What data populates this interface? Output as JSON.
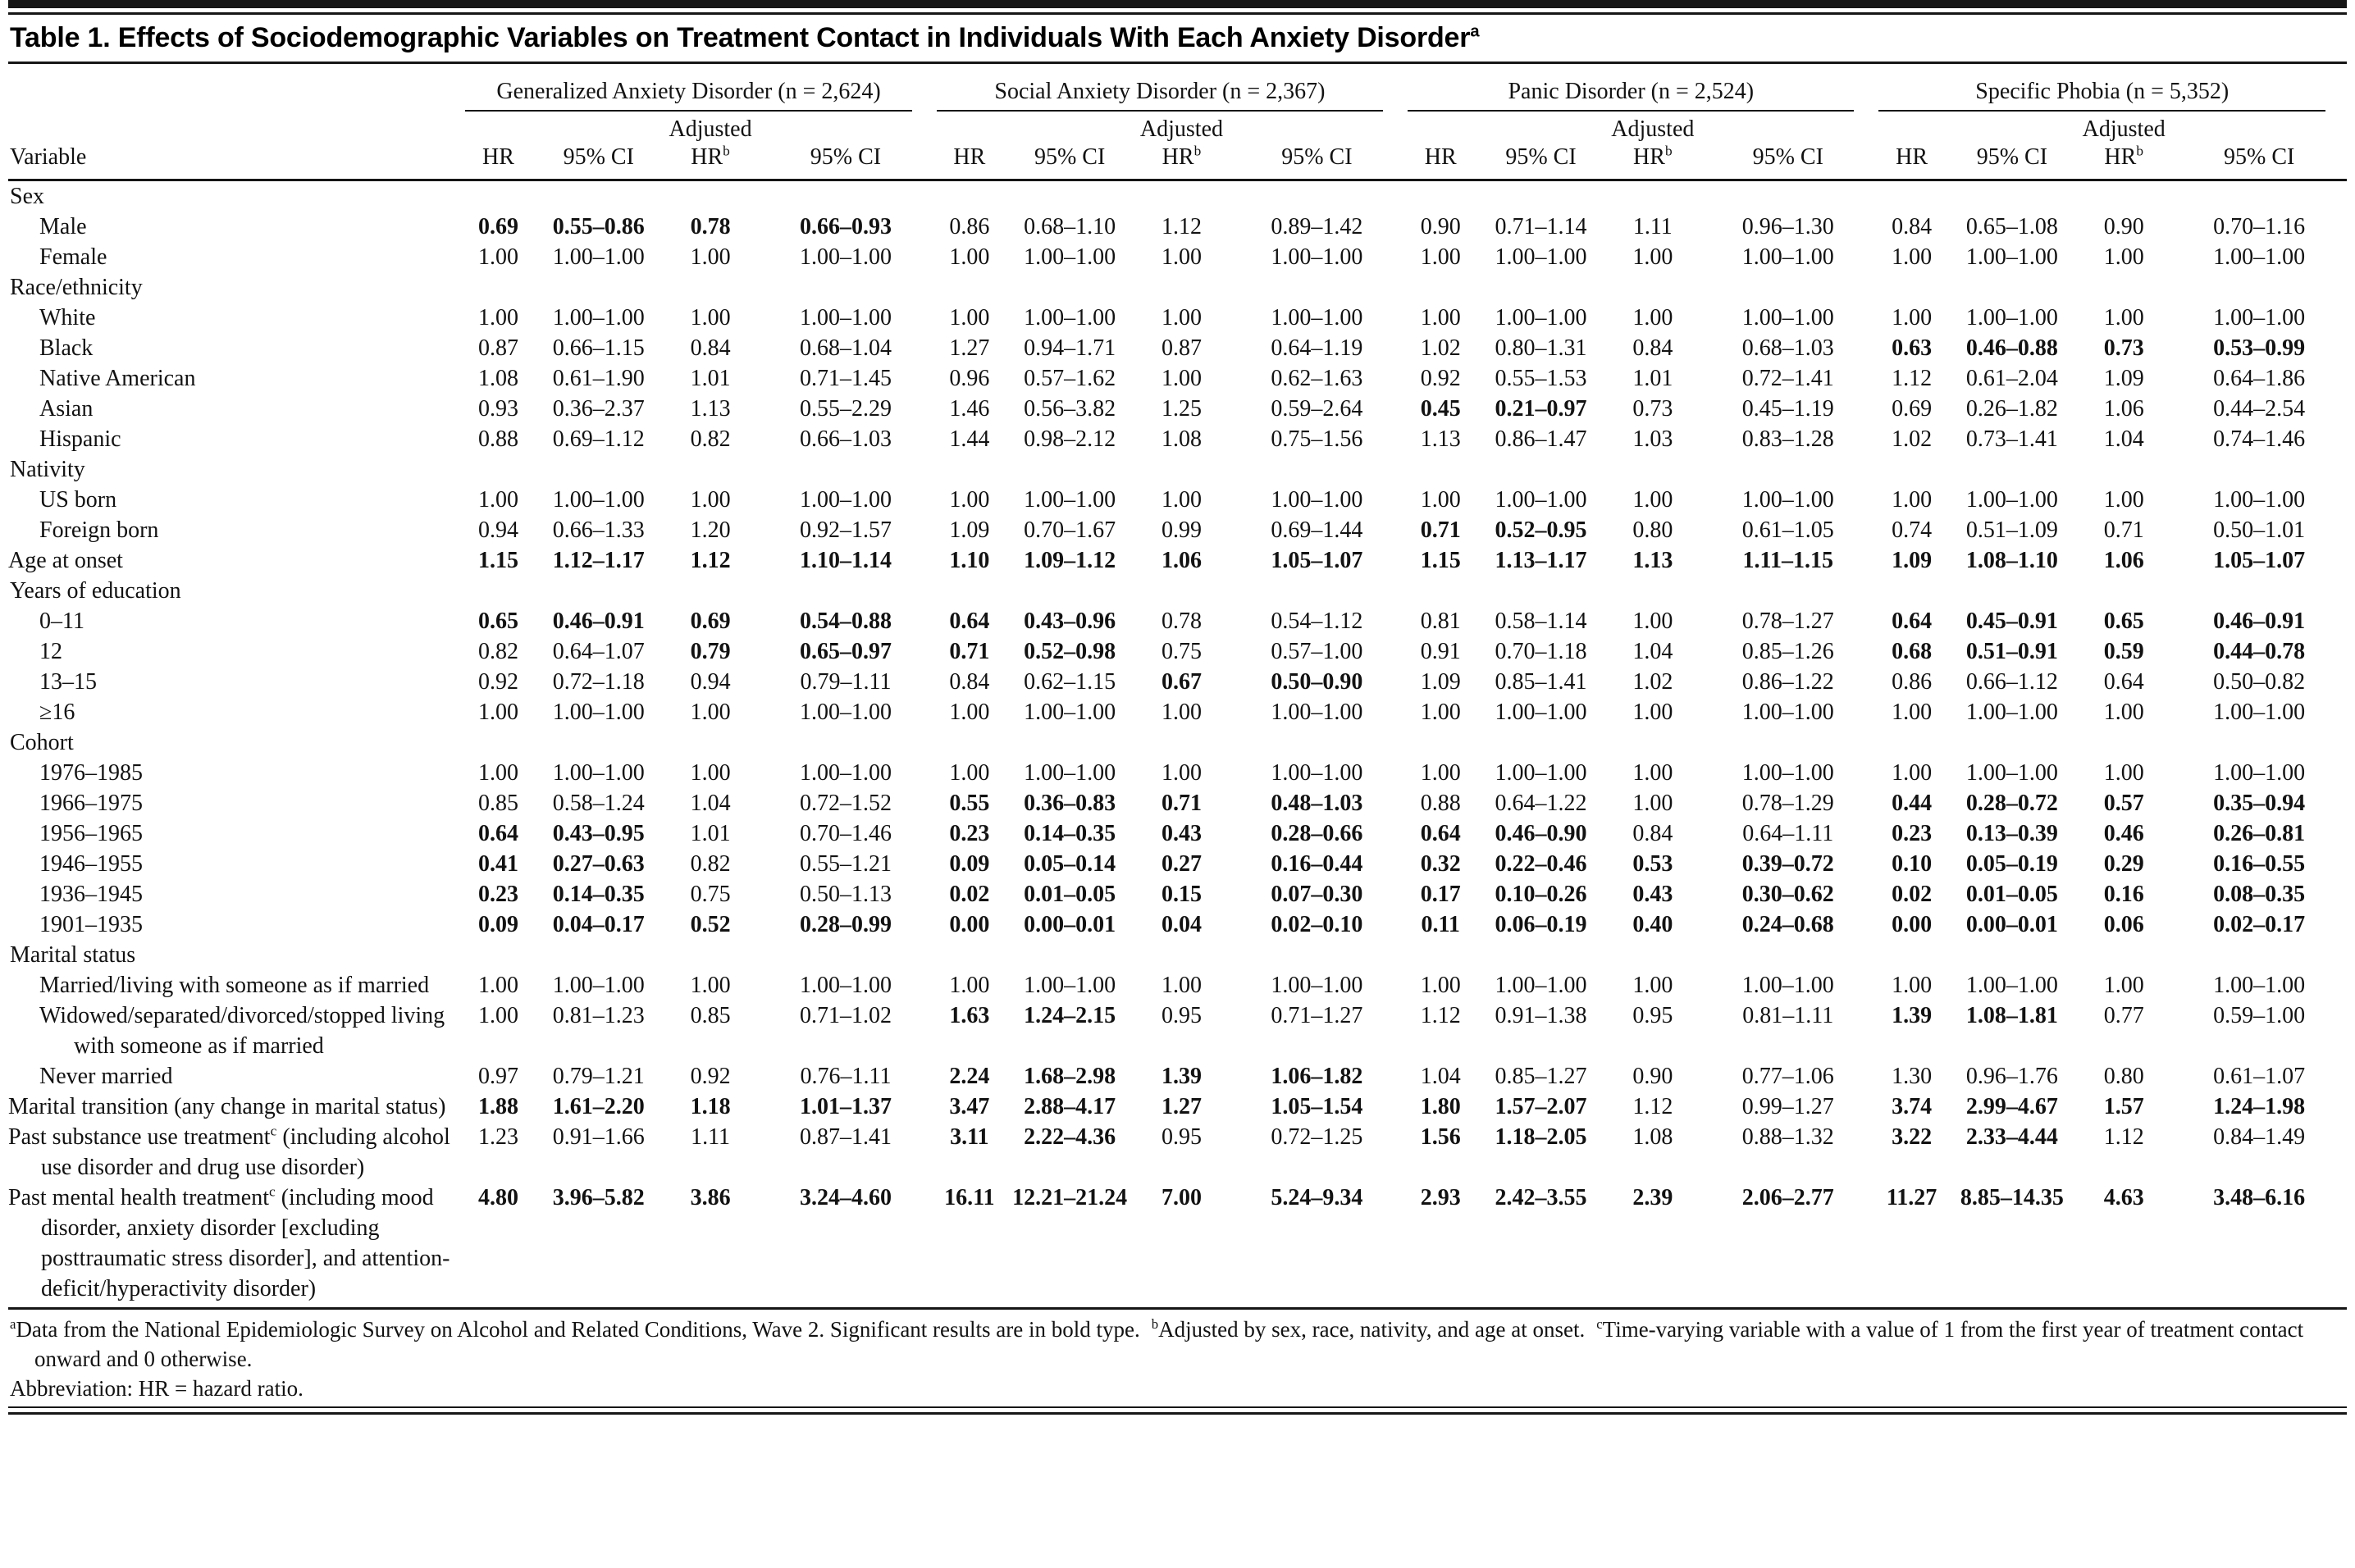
{
  "title": {
    "text": "Table 1. Effects of Sociodemographic Variables on Treatment Contact in Individuals With Each Anxiety Disorder",
    "sup": "a"
  },
  "header": {
    "variable_label": "Variable",
    "adjusted_label": "Adjusted",
    "groups": [
      {
        "label": "Generalized Anxiety Disorder (n = 2,624)"
      },
      {
        "label": "Social Anxiety Disorder (n = 2,367)"
      },
      {
        "label": "Panic Disorder (n = 2,524)"
      },
      {
        "label": "Specific Phobia (n = 5,352)"
      }
    ],
    "sub_columns": [
      {
        "text": "HR",
        "sup": ""
      },
      {
        "text": "95% CI",
        "sup": ""
      },
      {
        "text": "HR",
        "sup": "b"
      },
      {
        "text": "95% CI",
        "sup": ""
      }
    ]
  },
  "rows": [
    {
      "type": "section",
      "label": "Sex"
    },
    {
      "type": "data",
      "indent": 1,
      "label": "Male",
      "cells": [
        "0.69",
        "0.55–0.86",
        "0.78",
        "0.66–0.93",
        "0.86",
        "0.68–1.10",
        "1.12",
        "0.89–1.42",
        "0.90",
        "0.71–1.14",
        "1.11",
        "0.96–1.30",
        "0.84",
        "0.65–1.08",
        "0.90",
        "0.70–1.16"
      ],
      "bold": [
        0,
        1,
        2,
        3
      ]
    },
    {
      "type": "data",
      "indent": 1,
      "label": "Female",
      "cells": [
        "1.00",
        "1.00–1.00",
        "1.00",
        "1.00–1.00",
        "1.00",
        "1.00–1.00",
        "1.00",
        "1.00–1.00",
        "1.00",
        "1.00–1.00",
        "1.00",
        "1.00–1.00",
        "1.00",
        "1.00–1.00",
        "1.00",
        "1.00–1.00"
      ],
      "bold": []
    },
    {
      "type": "section",
      "label": "Race/ethnicity"
    },
    {
      "type": "data",
      "indent": 1,
      "label": "White",
      "cells": [
        "1.00",
        "1.00–1.00",
        "1.00",
        "1.00–1.00",
        "1.00",
        "1.00–1.00",
        "1.00",
        "1.00–1.00",
        "1.00",
        "1.00–1.00",
        "1.00",
        "1.00–1.00",
        "1.00",
        "1.00–1.00",
        "1.00",
        "1.00–1.00"
      ],
      "bold": []
    },
    {
      "type": "data",
      "indent": 1,
      "label": "Black",
      "cells": [
        "0.87",
        "0.66–1.15",
        "0.84",
        "0.68–1.04",
        "1.27",
        "0.94–1.71",
        "0.87",
        "0.64–1.19",
        "1.02",
        "0.80–1.31",
        "0.84",
        "0.68–1.03",
        "0.63",
        "0.46–0.88",
        "0.73",
        "0.53–0.99"
      ],
      "bold": [
        12,
        13,
        14,
        15
      ]
    },
    {
      "type": "data",
      "indent": 1,
      "label": "Native American",
      "cells": [
        "1.08",
        "0.61–1.90",
        "1.01",
        "0.71–1.45",
        "0.96",
        "0.57–1.62",
        "1.00",
        "0.62–1.63",
        "0.92",
        "0.55–1.53",
        "1.01",
        "0.72–1.41",
        "1.12",
        "0.61–2.04",
        "1.09",
        "0.64–1.86"
      ],
      "bold": []
    },
    {
      "type": "data",
      "indent": 1,
      "label": "Asian",
      "cells": [
        "0.93",
        "0.36–2.37",
        "1.13",
        "0.55–2.29",
        "1.46",
        "0.56–3.82",
        "1.25",
        "0.59–2.64",
        "0.45",
        "0.21–0.97",
        "0.73",
        "0.45–1.19",
        "0.69",
        "0.26–1.82",
        "1.06",
        "0.44–2.54"
      ],
      "bold": [
        8,
        9
      ]
    },
    {
      "type": "data",
      "indent": 1,
      "label": "Hispanic",
      "cells": [
        "0.88",
        "0.69–1.12",
        "0.82",
        "0.66–1.03",
        "1.44",
        "0.98–2.12",
        "1.08",
        "0.75–1.56",
        "1.13",
        "0.86–1.47",
        "1.03",
        "0.83–1.28",
        "1.02",
        "0.73–1.41",
        "1.04",
        "0.74–1.46"
      ],
      "bold": []
    },
    {
      "type": "section",
      "label": "Nativity"
    },
    {
      "type": "data",
      "indent": 1,
      "label": "US born",
      "cells": [
        "1.00",
        "1.00–1.00",
        "1.00",
        "1.00–1.00",
        "1.00",
        "1.00–1.00",
        "1.00",
        "1.00–1.00",
        "1.00",
        "1.00–1.00",
        "1.00",
        "1.00–1.00",
        "1.00",
        "1.00–1.00",
        "1.00",
        "1.00–1.00"
      ],
      "bold": []
    },
    {
      "type": "data",
      "indent": 1,
      "label": "Foreign born",
      "cells": [
        "0.94",
        "0.66–1.33",
        "1.20",
        "0.92–1.57",
        "1.09",
        "0.70–1.67",
        "0.99",
        "0.69–1.44",
        "0.71",
        "0.52–0.95",
        "0.80",
        "0.61–1.05",
        "0.74",
        "0.51–1.09",
        "0.71",
        "0.50–1.01"
      ],
      "bold": [
        8,
        9
      ]
    },
    {
      "type": "data",
      "indent": 0,
      "label": "Age at onset",
      "cells": [
        "1.15",
        "1.12–1.17",
        "1.12",
        "1.10–1.14",
        "1.10",
        "1.09–1.12",
        "1.06",
        "1.05–1.07",
        "1.15",
        "1.13–1.17",
        "1.13",
        "1.11–1.15",
        "1.09",
        "1.08–1.10",
        "1.06",
        "1.05–1.07"
      ],
      "bold": [
        0,
        1,
        2,
        3,
        4,
        5,
        6,
        7,
        8,
        9,
        10,
        11,
        12,
        13,
        14,
        15
      ]
    },
    {
      "type": "section",
      "label": "Years of education"
    },
    {
      "type": "data",
      "indent": 1,
      "label": "0–11",
      "cells": [
        "0.65",
        "0.46–0.91",
        "0.69",
        "0.54–0.88",
        "0.64",
        "0.43–0.96",
        "0.78",
        "0.54–1.12",
        "0.81",
        "0.58–1.14",
        "1.00",
        "0.78–1.27",
        "0.64",
        "0.45–0.91",
        "0.65",
        "0.46–0.91"
      ],
      "bold": [
        0,
        1,
        2,
        3,
        4,
        5,
        12,
        13,
        14,
        15
      ]
    },
    {
      "type": "data",
      "indent": 1,
      "label": "12",
      "cells": [
        "0.82",
        "0.64–1.07",
        "0.79",
        "0.65–0.97",
        "0.71",
        "0.52–0.98",
        "0.75",
        "0.57–1.00",
        "0.91",
        "0.70–1.18",
        "1.04",
        "0.85–1.26",
        "0.68",
        "0.51–0.91",
        "0.59",
        "0.44–0.78"
      ],
      "bold": [
        2,
        3,
        4,
        5,
        12,
        13,
        14,
        15
      ]
    },
    {
      "type": "data",
      "indent": 1,
      "label": "13–15",
      "cells": [
        "0.92",
        "0.72–1.18",
        "0.94",
        "0.79–1.11",
        "0.84",
        "0.62–1.15",
        "0.67",
        "0.50–0.90",
        "1.09",
        "0.85–1.41",
        "1.02",
        "0.86–1.22",
        "0.86",
        "0.66–1.12",
        "0.64",
        "0.50–0.82"
      ],
      "bold": [
        6,
        7
      ]
    },
    {
      "type": "data",
      "indent": 1,
      "label": "≥16",
      "cells": [
        "1.00",
        "1.00–1.00",
        "1.00",
        "1.00–1.00",
        "1.00",
        "1.00–1.00",
        "1.00",
        "1.00–1.00",
        "1.00",
        "1.00–1.00",
        "1.00",
        "1.00–1.00",
        "1.00",
        "1.00–1.00",
        "1.00",
        "1.00–1.00"
      ],
      "bold": []
    },
    {
      "type": "section",
      "label": "Cohort"
    },
    {
      "type": "data",
      "indent": 1,
      "label": "1976–1985",
      "cells": [
        "1.00",
        "1.00–1.00",
        "1.00",
        "1.00–1.00",
        "1.00",
        "1.00–1.00",
        "1.00",
        "1.00–1.00",
        "1.00",
        "1.00–1.00",
        "1.00",
        "1.00–1.00",
        "1.00",
        "1.00–1.00",
        "1.00",
        "1.00–1.00"
      ],
      "bold": []
    },
    {
      "type": "data",
      "indent": 1,
      "label": "1966–1975",
      "cells": [
        "0.85",
        "0.58–1.24",
        "1.04",
        "0.72–1.52",
        "0.55",
        "0.36–0.83",
        "0.71",
        "0.48–1.03",
        "0.88",
        "0.64–1.22",
        "1.00",
        "0.78–1.29",
        "0.44",
        "0.28–0.72",
        "0.57",
        "0.35–0.94"
      ],
      "bold": [
        4,
        5,
        6,
        7,
        12,
        13,
        14,
        15
      ]
    },
    {
      "type": "data",
      "indent": 1,
      "label": "1956–1965",
      "cells": [
        "0.64",
        "0.43–0.95",
        "1.01",
        "0.70–1.46",
        "0.23",
        "0.14–0.35",
        "0.43",
        "0.28–0.66",
        "0.64",
        "0.46–0.90",
        "0.84",
        "0.64–1.11",
        "0.23",
        "0.13–0.39",
        "0.46",
        "0.26–0.81"
      ],
      "bold": [
        0,
        1,
        4,
        5,
        6,
        7,
        8,
        9,
        12,
        13,
        14,
        15
      ]
    },
    {
      "type": "data",
      "indent": 1,
      "label": "1946–1955",
      "cells": [
        "0.41",
        "0.27–0.63",
        "0.82",
        "0.55–1.21",
        "0.09",
        "0.05–0.14",
        "0.27",
        "0.16–0.44",
        "0.32",
        "0.22–0.46",
        "0.53",
        "0.39–0.72",
        "0.10",
        "0.05–0.19",
        "0.29",
        "0.16–0.55"
      ],
      "bold": [
        0,
        1,
        4,
        5,
        6,
        7,
        8,
        9,
        10,
        11,
        12,
        13,
        14,
        15
      ]
    },
    {
      "type": "data",
      "indent": 1,
      "label": "1936–1945",
      "cells": [
        "0.23",
        "0.14–0.35",
        "0.75",
        "0.50–1.13",
        "0.02",
        "0.01–0.05",
        "0.15",
        "0.07–0.30",
        "0.17",
        "0.10–0.26",
        "0.43",
        "0.30–0.62",
        "0.02",
        "0.01–0.05",
        "0.16",
        "0.08–0.35"
      ],
      "bold": [
        0,
        1,
        4,
        5,
        6,
        7,
        8,
        9,
        10,
        11,
        12,
        13,
        14,
        15
      ]
    },
    {
      "type": "data",
      "indent": 1,
      "label": "1901–1935",
      "cells": [
        "0.09",
        "0.04–0.17",
        "0.52",
        "0.28–0.99",
        "0.00",
        "0.00–0.01",
        "0.04",
        "0.02–0.10",
        "0.11",
        "0.06–0.19",
        "0.40",
        "0.24–0.68",
        "0.00",
        "0.00–0.01",
        "0.06",
        "0.02–0.17"
      ],
      "bold": [
        0,
        1,
        2,
        3,
        4,
        5,
        6,
        7,
        8,
        9,
        10,
        11,
        12,
        13,
        14,
        15
      ]
    },
    {
      "type": "section",
      "label": "Marital status"
    },
    {
      "type": "data",
      "indent": 1,
      "label": "Married/living with someone as if married",
      "cells": [
        "1.00",
        "1.00–1.00",
        "1.00",
        "1.00–1.00",
        "1.00",
        "1.00–1.00",
        "1.00",
        "1.00–1.00",
        "1.00",
        "1.00–1.00",
        "1.00",
        "1.00–1.00",
        "1.00",
        "1.00–1.00",
        "1.00",
        "1.00–1.00"
      ],
      "bold": []
    },
    {
      "type": "data",
      "indent": 1,
      "label": "Widowed/separated/divorced/​stopped living with someone as if married",
      "cells": [
        "1.00",
        "0.81–1.23",
        "0.85",
        "0.71–1.02",
        "1.63",
        "1.24–2.15",
        "0.95",
        "0.71–1.27",
        "1.12",
        "0.91–1.38",
        "0.95",
        "0.81–1.11",
        "1.39",
        "1.08–1.81",
        "0.77",
        "0.59–1.00"
      ],
      "bold": [
        4,
        5,
        12,
        13
      ]
    },
    {
      "type": "data",
      "indent": 1,
      "label": "Never married",
      "cells": [
        "0.97",
        "0.79–1.21",
        "0.92",
        "0.76–1.11",
        "2.24",
        "1.68–2.98",
        "1.39",
        "1.06–1.82",
        "1.04",
        "0.85–1.27",
        "0.90",
        "0.77–1.06",
        "1.30",
        "0.96–1.76",
        "0.80",
        "0.61–1.07"
      ],
      "bold": [
        4,
        5,
        6,
        7
      ]
    },
    {
      "type": "data",
      "indent": 0,
      "label": "Marital transition (any change in marital status)",
      "cells": [
        "1.88",
        "1.61–2.20",
        "1.18",
        "1.01–1.37",
        "3.47",
        "2.88–4.17",
        "1.27",
        "1.05–1.54",
        "1.80",
        "1.57–2.07",
        "1.12",
        "0.99–1.27",
        "3.74",
        "2.99–4.67",
        "1.57",
        "1.24–1.98"
      ],
      "bold": [
        0,
        1,
        2,
        3,
        4,
        5,
        6,
        7,
        8,
        9,
        12,
        13,
        14,
        15
      ]
    },
    {
      "type": "data",
      "indent": 0,
      "label": "Past substance use treatment",
      "sup": "c",
      "label_rest": " (including alcohol use disorder and drug use disorder)",
      "cells": [
        "1.23",
        "0.91–1.66",
        "1.11",
        "0.87–1.41",
        "3.11",
        "2.22–4.36",
        "0.95",
        "0.72–1.25",
        "1.56",
        "1.18–2.05",
        "1.08",
        "0.88–1.32",
        "3.22",
        "2.33–4.44",
        "1.12",
        "0.84–1.49"
      ],
      "bold": [
        4,
        5,
        8,
        9,
        12,
        13
      ]
    },
    {
      "type": "data",
      "indent": 0,
      "label": "Past mental health treatment",
      "sup": "c",
      "label_rest": " (including mood disorder, anxiety disorder [excluding posttraumatic stress disorder], and attention-deficit/hyperactivity disorder)",
      "cells": [
        "4.80",
        "3.96–5.82",
        "3.86",
        "3.24–4.60",
        "16.11",
        "12.21–21.24",
        "7.00",
        "5.24–9.34",
        "2.93",
        "2.42–3.55",
        "2.39",
        "2.06–2.77",
        "11.27",
        "8.85–14.35",
        "4.63",
        "3.48–6.16"
      ],
      "bold": [
        0,
        1,
        2,
        3,
        4,
        5,
        6,
        7,
        8,
        9,
        10,
        11,
        12,
        13,
        14,
        15
      ]
    }
  ],
  "footnotes": {
    "notes": [
      {
        "sup": "a",
        "text": "Data from the National Epidemiologic Survey on Alcohol and Related Conditions, Wave 2. Significant results are in bold type."
      },
      {
        "sup": "b",
        "text": "Adjusted by sex, race, nativity, and age at onset."
      },
      {
        "sup": "c",
        "text": "Time-varying variable with a value of 1 from the first year of treatment contact onward and 0 otherwise."
      }
    ],
    "abbreviation": "Abbreviation: HR = hazard ratio."
  }
}
